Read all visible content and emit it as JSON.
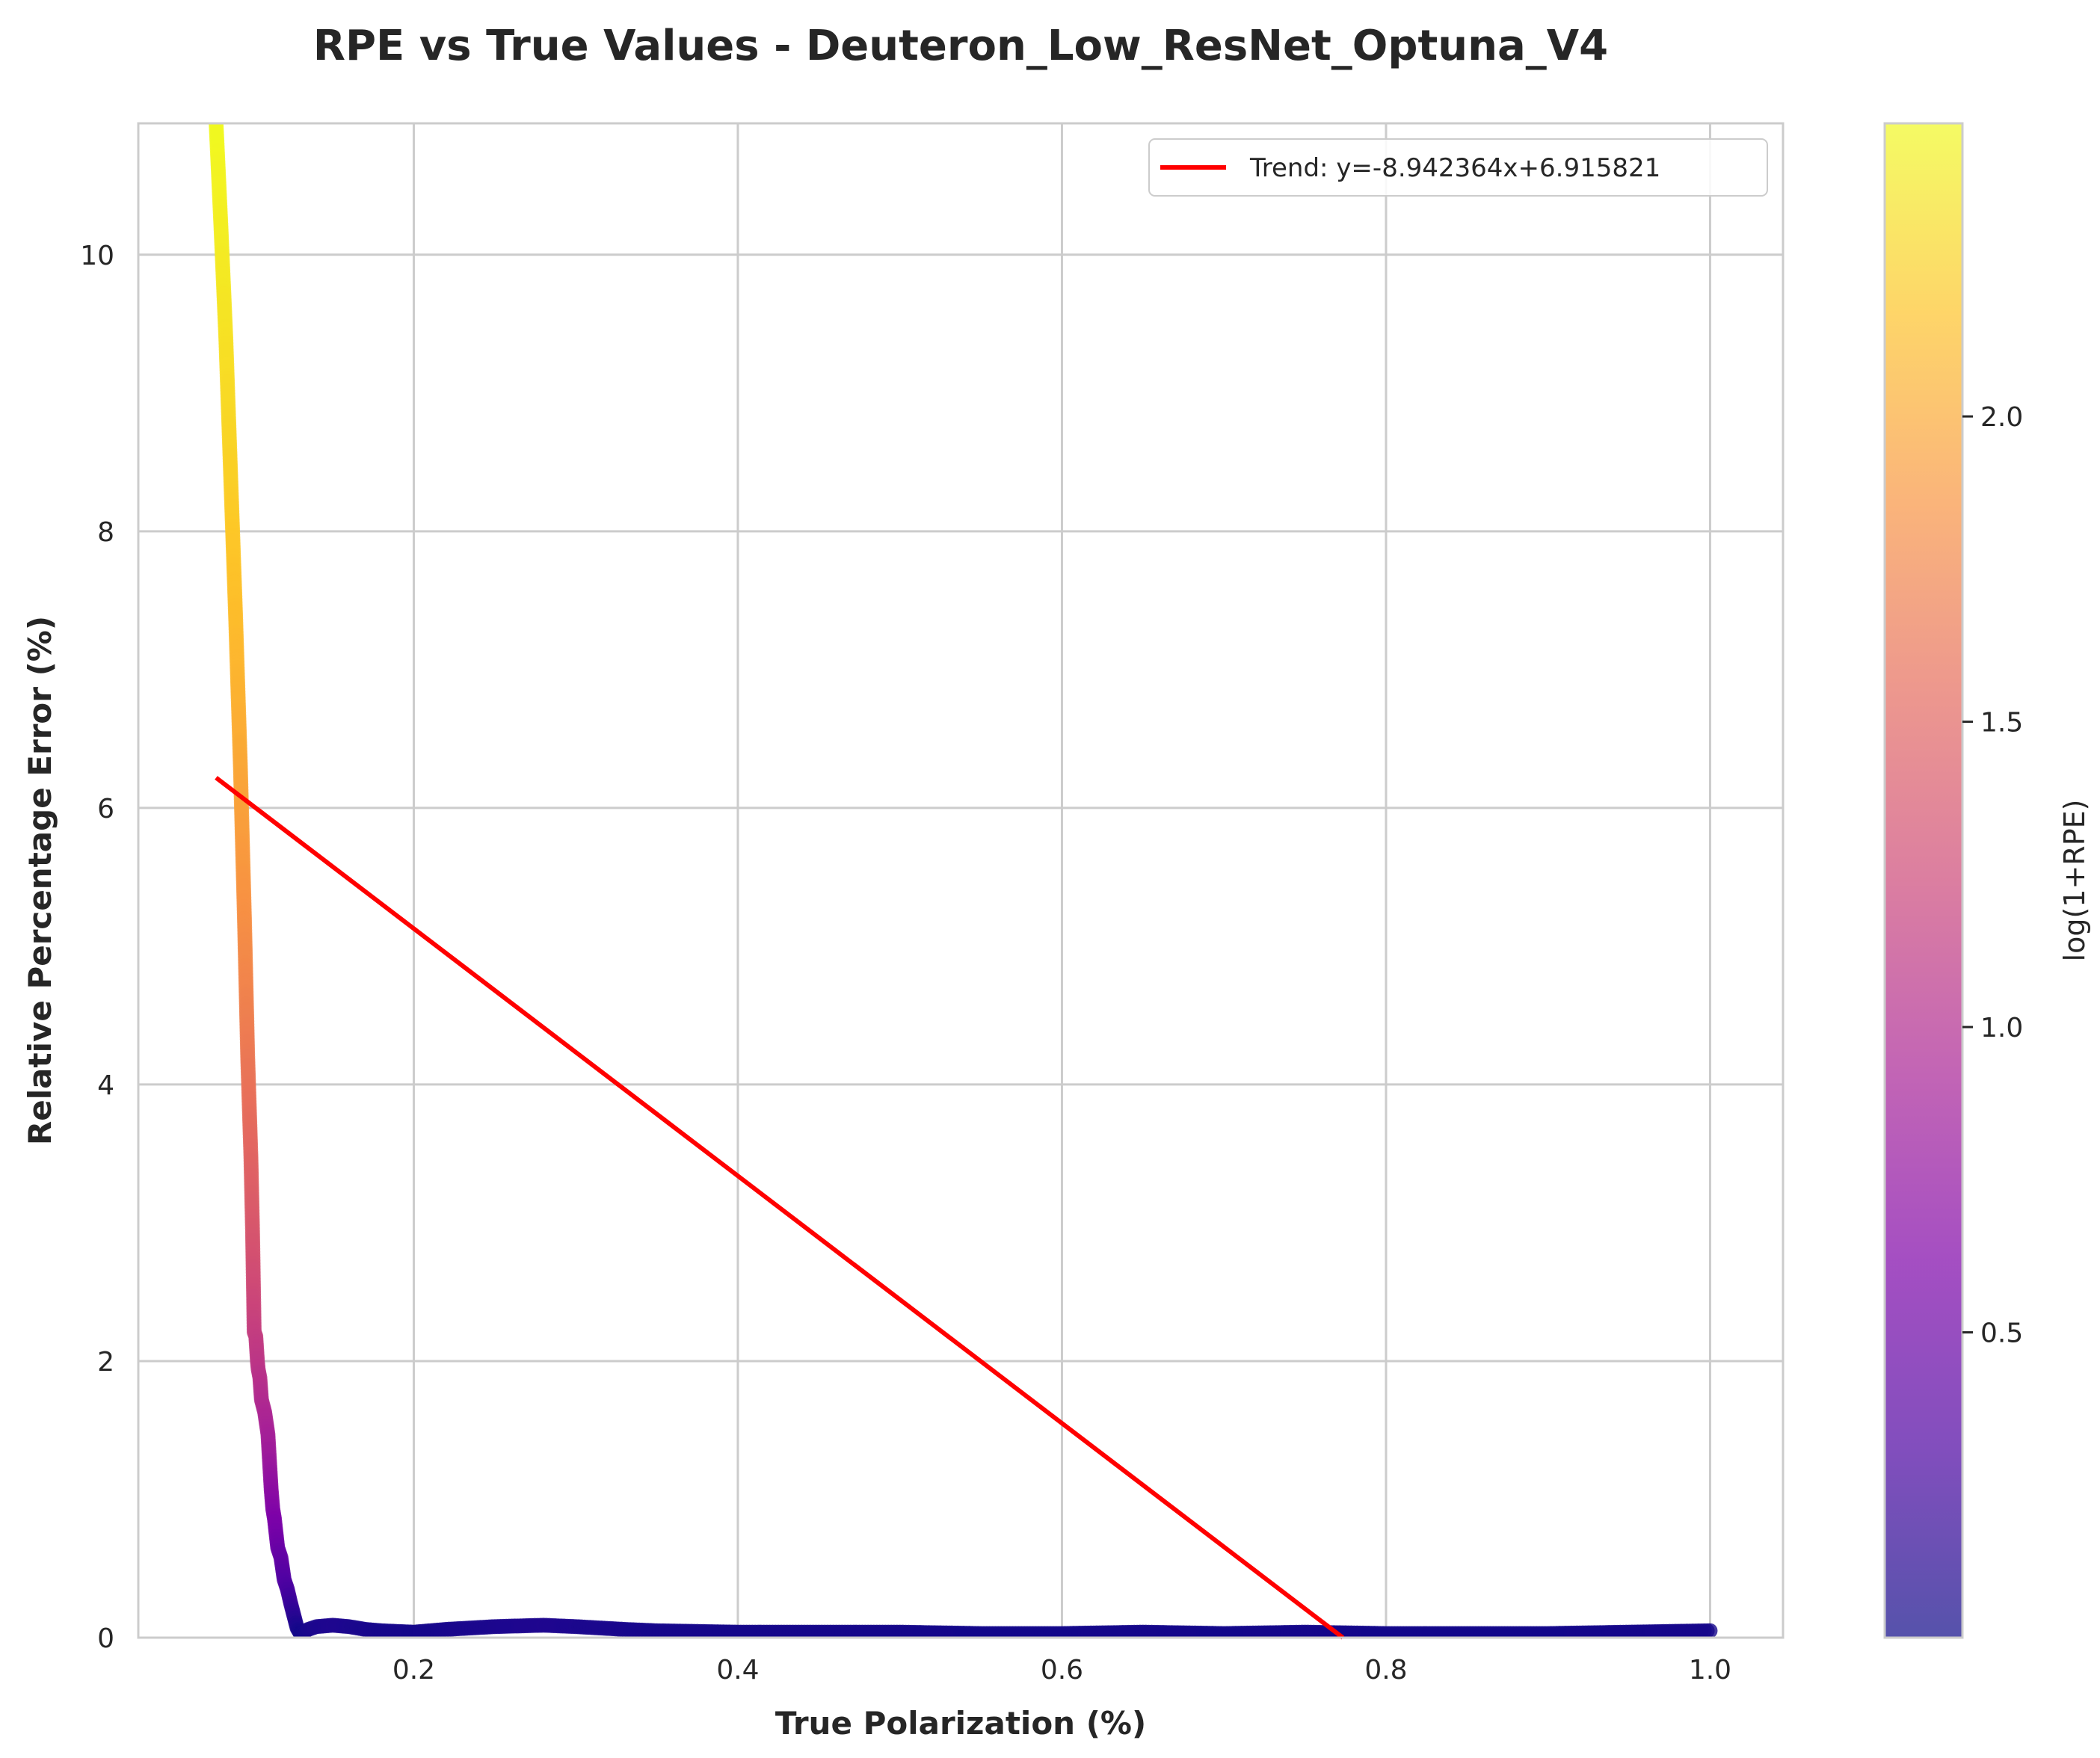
{
  "chart_data": {
    "type": "scatter",
    "title": "RPE vs True Values - Deuteron_Low_ResNet_Optuna_V4",
    "xlabel": "True Polarization (%)",
    "ylabel": "Relative Percentage Error (%)",
    "xlim": [
      0.03,
      1.045
    ],
    "ylim": [
      0,
      10.95
    ],
    "xticks": [
      0.2,
      0.4,
      0.6,
      0.8,
      1.0
    ],
    "xtick_labels": [
      "0.2",
      "0.4",
      "0.6",
      "0.8",
      "1.0"
    ],
    "yticks": [
      0,
      2,
      4,
      6,
      8,
      10
    ],
    "ytick_labels": [
      "0",
      "2",
      "4",
      "6",
      "8",
      "10"
    ],
    "grid": true,
    "colormap": "plasma",
    "colorbar": {
      "label": "log(1+RPE)",
      "range": [
        0.0,
        2.48
      ],
      "ticks": [
        0.5,
        1.0,
        1.5,
        2.0
      ],
      "tick_labels": [
        "0.5",
        "1.0",
        "1.5",
        "2.0"
      ]
    },
    "legend": {
      "position": "top-right",
      "entries": [
        {
          "label": "Trend: y=-8.942364x+6.915821",
          "color": "#ff0000"
        }
      ]
    },
    "trend": {
      "slope": -8.942364,
      "intercept": 6.915821,
      "x_range": [
        0.078,
        0.7734
      ],
      "color": "#ff0000"
    },
    "series": [
      {
        "x": [
          0.078,
          0.081,
          0.084,
          0.087,
          0.09,
          0.093,
          0.0955,
          0.0975,
          0.0995,
          0.1005,
          0.1015,
          0.1025,
          0.1035,
          0.104,
          0.105,
          0.106,
          0.108,
          0.11,
          0.112,
          0.113,
          0.114,
          0.116,
          0.118,
          0.12,
          0.122,
          0.124,
          0.126,
          0.128,
          0.13,
          0.135,
          0.14,
          0.15,
          0.16,
          0.17,
          0.18,
          0.2,
          0.22,
          0.25,
          0.28,
          0.3,
          0.33,
          0.35,
          0.4,
          0.45,
          0.5,
          0.55,
          0.6,
          0.65,
          0.7,
          0.75,
          0.8,
          0.85,
          0.9,
          0.95,
          1.0
        ],
        "y": [
          10.95,
          10.2,
          9.4,
          8.4,
          7.4,
          6.3,
          5.2,
          4.2,
          3.47,
          2.94,
          2.21,
          2.18,
          2.0,
          1.94,
          1.88,
          1.72,
          1.63,
          1.47,
          1.07,
          0.93,
          0.86,
          0.65,
          0.58,
          0.42,
          0.35,
          0.25,
          0.16,
          0.07,
          0.03,
          0.06,
          0.08,
          0.09,
          0.08,
          0.06,
          0.05,
          0.04,
          0.06,
          0.08,
          0.09,
          0.08,
          0.06,
          0.05,
          0.04,
          0.04,
          0.04,
          0.03,
          0.03,
          0.04,
          0.03,
          0.04,
          0.03,
          0.03,
          0.03,
          0.04,
          0.05
        ]
      }
    ]
  }
}
